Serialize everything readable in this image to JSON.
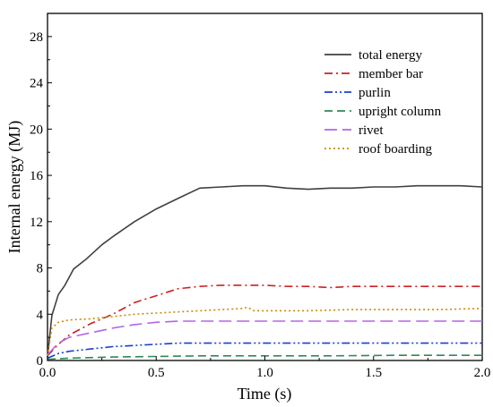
{
  "chart_data": {
    "type": "line",
    "xlabel": "Time (s)",
    "ylabel": "Internal energy (MJ)",
    "xlim": [
      0,
      2.0
    ],
    "ylim": [
      0,
      30
    ],
    "xticks": [
      "0.0",
      "0.5",
      "1.0",
      "1.5",
      "2.0"
    ],
    "yticks": [
      "0",
      "4",
      "8",
      "12",
      "16",
      "20",
      "24",
      "28"
    ],
    "xtick_values": [
      0,
      0.5,
      1.0,
      1.5,
      2.0
    ],
    "ytick_values": [
      0,
      4,
      8,
      12,
      16,
      20,
      24,
      28
    ],
    "grid": false,
    "legend_position": "top-right",
    "series": [
      {
        "name": "total energy",
        "color": "#404040",
        "dash": "solid",
        "x": [
          0.0,
          0.02,
          0.05,
          0.08,
          0.12,
          0.18,
          0.25,
          0.3,
          0.4,
          0.5,
          0.6,
          0.7,
          0.8,
          0.9,
          1.0,
          1.1,
          1.2,
          1.3,
          1.4,
          1.5,
          1.6,
          1.7,
          1.8,
          1.9,
          2.0
        ],
        "values": [
          0.3,
          3.9,
          5.7,
          6.5,
          7.9,
          8.8,
          10.0,
          10.7,
          12.0,
          13.1,
          14.0,
          14.9,
          15.0,
          15.1,
          15.1,
          14.9,
          14.8,
          14.9,
          14.9,
          15.0,
          15.0,
          15.1,
          15.1,
          15.1,
          15.0
        ]
      },
      {
        "name": "member bar",
        "color": "#cc2222",
        "dash": "dashdot",
        "x": [
          0.0,
          0.05,
          0.1,
          0.2,
          0.3,
          0.4,
          0.5,
          0.6,
          0.7,
          0.8,
          0.9,
          1.0,
          1.1,
          1.2,
          1.3,
          1.4,
          1.5,
          1.6,
          1.7,
          1.8,
          1.9,
          2.0
        ],
        "values": [
          0.4,
          1.4,
          2.2,
          3.2,
          4.0,
          5.0,
          5.6,
          6.2,
          6.4,
          6.5,
          6.5,
          6.5,
          6.4,
          6.4,
          6.3,
          6.4,
          6.4,
          6.4,
          6.4,
          6.4,
          6.4,
          6.4
        ]
      },
      {
        "name": "purlin",
        "color": "#1a3fcc",
        "dash": "dashdotdot",
        "x": [
          0.0,
          0.05,
          0.1,
          0.2,
          0.3,
          0.4,
          0.5,
          0.6,
          0.7,
          0.8,
          1.0,
          1.2,
          1.4,
          1.6,
          1.8,
          2.0
        ],
        "values": [
          0.2,
          0.6,
          0.8,
          1.0,
          1.2,
          1.3,
          1.4,
          1.5,
          1.5,
          1.5,
          1.5,
          1.5,
          1.5,
          1.5,
          1.5,
          1.5
        ]
      },
      {
        "name": "upright column",
        "color": "#2e8b57",
        "dash": "dash",
        "x": [
          0.0,
          0.1,
          0.3,
          0.5,
          0.7,
          1.0,
          1.3,
          1.6,
          2.0
        ],
        "values": [
          0.1,
          0.2,
          0.3,
          0.35,
          0.4,
          0.4,
          0.4,
          0.45,
          0.45
        ]
      },
      {
        "name": "rivet",
        "color": "#b266e6",
        "dash": "longdash",
        "x": [
          0.0,
          0.05,
          0.1,
          0.2,
          0.3,
          0.4,
          0.5,
          0.6,
          0.7,
          0.8,
          1.0,
          1.2,
          1.4,
          1.6,
          1.8,
          2.0
        ],
        "values": [
          0.5,
          1.5,
          2.0,
          2.4,
          2.8,
          3.1,
          3.3,
          3.4,
          3.4,
          3.4,
          3.4,
          3.4,
          3.4,
          3.4,
          3.4,
          3.4
        ]
      },
      {
        "name": "roof boarding",
        "color": "#cc8a00",
        "dash": "dot",
        "x": [
          0.0,
          0.02,
          0.05,
          0.1,
          0.2,
          0.3,
          0.4,
          0.5,
          0.6,
          0.7,
          0.8,
          0.9,
          0.92,
          0.95,
          1.0,
          1.2,
          1.4,
          1.6,
          1.8,
          2.0
        ],
        "values": [
          0.4,
          2.8,
          3.3,
          3.5,
          3.6,
          3.8,
          4.0,
          4.1,
          4.2,
          4.3,
          4.4,
          4.5,
          4.6,
          4.3,
          4.3,
          4.3,
          4.4,
          4.4,
          4.4,
          4.5
        ]
      }
    ]
  }
}
